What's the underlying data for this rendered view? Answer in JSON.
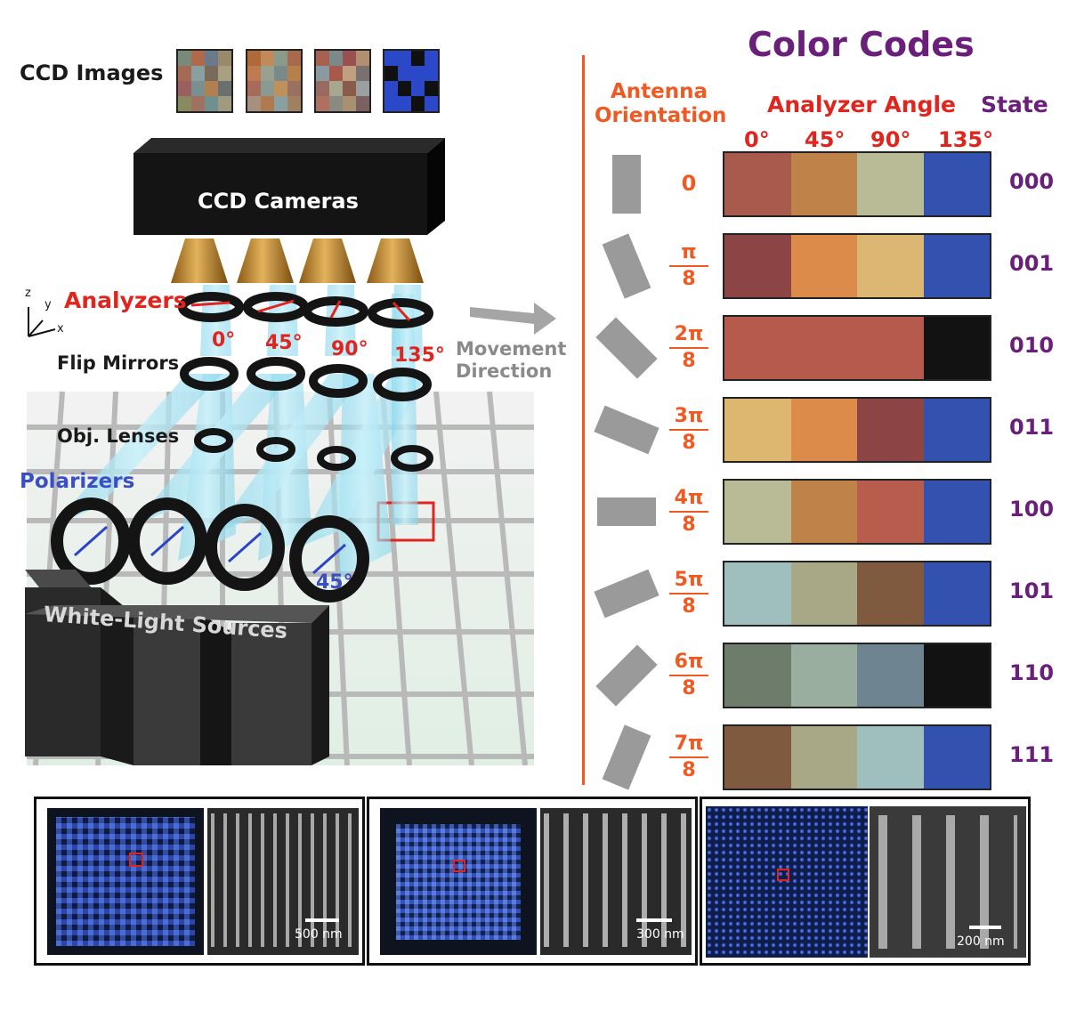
{
  "left": {
    "ccd_images_label": "CCD Images",
    "ccd_cameras_label": "CCD Cameras",
    "axis_z": "z",
    "axis_y": "y",
    "axis_x": "x",
    "analyzers_label": "Analyzers",
    "analyzer_angles": [
      "0°",
      "45°",
      "90°",
      "135°"
    ],
    "flip_mirrors_label": "Flip Mirrors",
    "obj_lenses_label": "Obj. Lenses",
    "polarizers_label": "Polarizers",
    "polarizer_angle": "45°",
    "sources_label": "White-Light Sources",
    "movement_line1": "Movement",
    "movement_line2": "Direction",
    "ccd_tiles": [
      [
        "#7a8a7a",
        "#b06a4a",
        "#6a7a8a",
        "#9a8a6a",
        "#a56a55",
        "#8aa0a0",
        "#7a6a5a",
        "#a8a080",
        "#9a6060",
        "#7a9090",
        "#b08050",
        "#6a7070",
        "#8a8a60",
        "#a07060",
        "#709090",
        "#a09a80"
      ],
      [
        "#b06a3a",
        "#c08a5a",
        "#8a9a8a",
        "#a86a4a",
        "#c07a50",
        "#9aa090",
        "#7a8a8a",
        "#b5804a",
        "#a86a5a",
        "#8a9a90",
        "#c0905a",
        "#9a7060",
        "#a89080",
        "#b07a50",
        "#8aa0a0",
        "#a08060"
      ],
      [
        "#a86050",
        "#7a8a8a",
        "#9a5050",
        "#b09070",
        "#8a9aa0",
        "#a85a4a",
        "#c0a080",
        "#7a7070",
        "#9a6a60",
        "#a8a890",
        "#8a5a4a",
        "#9aa0a0",
        "#b07060",
        "#8a8a80",
        "#a89070",
        "#7a6060"
      ],
      [
        "#2a48c8",
        "#2a48c8",
        "#101010",
        "#2a48c8",
        "#101010",
        "#2a48c8",
        "#2a48c8",
        "#2a48c8",
        "#2a48c8",
        "#101010",
        "#2a48c8",
        "#101010",
        "#2a48c8",
        "#2a48c8",
        "#101010",
        "#2a48c8"
      ]
    ]
  },
  "right": {
    "title": "Color Codes",
    "antenna_line1": "Antenna",
    "antenna_line2": "Orientation",
    "analyzer_angle_label": "Analyzer Angle",
    "state_label": "State",
    "angle_headers": [
      "0°",
      "45°",
      "90°",
      "135°"
    ],
    "rows": [
      {
        "num": "0",
        "den": "",
        "angle": 0,
        "colors": [
          "#a85a4c",
          "#bf8248",
          "#b9bb96",
          "#3351ae"
        ],
        "state": "000"
      },
      {
        "num": "π",
        "den": "8",
        "angle": 22.5,
        "colors": [
          "#8c4544",
          "#dd8b4b",
          "#dcb773",
          "#3351ae"
        ],
        "state": "001"
      },
      {
        "num": "2π",
        "den": "8",
        "angle": 45,
        "colors": [
          "#b65a4c",
          "#b65a4c",
          "#b65a4c",
          "#121212"
        ],
        "state": "010"
      },
      {
        "num": "3π",
        "den": "8",
        "angle": 67.5,
        "colors": [
          "#ddb670",
          "#dd8b4b",
          "#8c4544",
          "#3351ae"
        ],
        "state": "011"
      },
      {
        "num": "4π",
        "den": "8",
        "angle": 90,
        "colors": [
          "#b9bb96",
          "#bf8248",
          "#b85c4e",
          "#3351ae"
        ],
        "state": "100"
      },
      {
        "num": "5π",
        "den": "8",
        "angle": 112.5,
        "colors": [
          "#9ebfbd",
          "#a9a886",
          "#7f5a3f",
          "#3351ae"
        ],
        "state": "101"
      },
      {
        "num": "6π",
        "den": "8",
        "angle": 135,
        "colors": [
          "#6e7d6b",
          "#9aaea0",
          "#6f8491",
          "#121212"
        ],
        "state": "110"
      },
      {
        "num": "7π",
        "den": "8",
        "angle": 157.5,
        "colors": [
          "#7f5a3f",
          "#a9a886",
          "#9ebfbd",
          "#3351ae"
        ],
        "state": "111"
      }
    ]
  },
  "bottom": {
    "scale_bars": [
      "500 nm",
      "300 nm",
      "200 nm"
    ]
  }
}
